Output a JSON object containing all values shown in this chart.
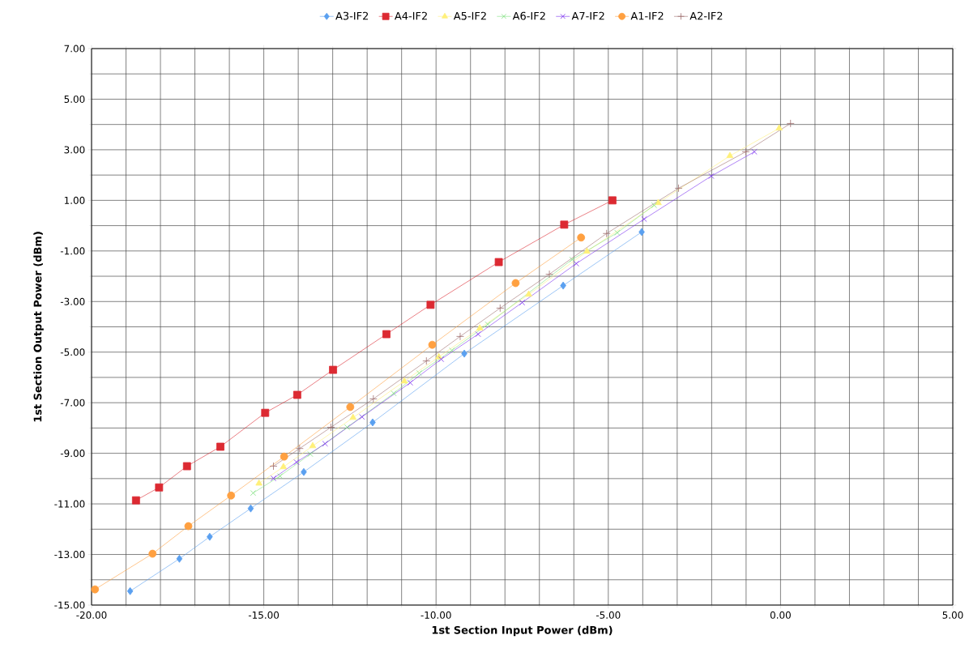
{
  "chart_data": {
    "type": "line",
    "xlabel": "1st Section Input Power (dBm)",
    "ylabel": "1st Section Output Power (dBm)",
    "xlim": [
      -20,
      5
    ],
    "ylim": [
      -15,
      7
    ],
    "xticks": [
      {
        "value": -20,
        "label": "-20.00"
      },
      {
        "value": -15,
        "label": "-15.00"
      },
      {
        "value": -10,
        "label": "-10.00"
      },
      {
        "value": -5,
        "label": "-5.00"
      },
      {
        "value": 0,
        "label": "0.00"
      },
      {
        "value": 5,
        "label": "5.00"
      }
    ],
    "yticks": [
      {
        "value": -15,
        "label": "-15.00"
      },
      {
        "value": -13,
        "label": "-13.00"
      },
      {
        "value": -11,
        "label": "-11.00"
      },
      {
        "value": -9,
        "label": "-9.00"
      },
      {
        "value": -7,
        "label": "-7.00"
      },
      {
        "value": -5,
        "label": "-5.00"
      },
      {
        "value": -3,
        "label": "-3.00"
      },
      {
        "value": -1,
        "label": "-1.00"
      },
      {
        "value": 1,
        "label": "1.00"
      },
      {
        "value": 3,
        "label": "3.00"
      },
      {
        "value": 5,
        "label": "5.00"
      },
      {
        "value": 7,
        "label": "7.00"
      }
    ],
    "grid": true,
    "legend": "top",
    "series": [
      {
        "name": "A3-IF2",
        "color": "#5aa0f0",
        "marker": "diamond",
        "x": [
          -18.88,
          -17.45,
          -16.57,
          -15.38,
          -13.84,
          -11.84,
          -9.18,
          -6.31,
          -4.03
        ],
        "values": [
          -14.45,
          -13.17,
          -12.3,
          -11.18,
          -9.74,
          -7.78,
          -5.06,
          -2.37,
          -0.25
        ]
      },
      {
        "name": "A4-IF2",
        "color": "#dc2a32",
        "marker": "square",
        "x": [
          -18.71,
          -18.04,
          -17.23,
          -16.26,
          -14.96,
          -14.03,
          -12.99,
          -11.44,
          -10.16,
          -8.18,
          -6.28,
          -4.88
        ],
        "values": [
          -10.86,
          -10.35,
          -9.51,
          -8.74,
          -7.4,
          -6.69,
          -5.7,
          -4.29,
          -3.13,
          -1.44,
          0.04,
          1.0
        ]
      },
      {
        "name": "A5-IF2",
        "color": "#fff07a",
        "marker": "triangle",
        "x": [
          -15.14,
          -14.43,
          -13.58,
          -12.41,
          -10.92,
          -9.92,
          -8.73,
          -7.31,
          -5.62,
          -3.55,
          -1.47,
          -0.04
        ],
        "values": [
          -10.19,
          -9.54,
          -8.71,
          -7.59,
          -6.15,
          -5.19,
          -4.06,
          -2.72,
          -1.02,
          0.9,
          2.76,
          3.85
        ]
      },
      {
        "name": "A6-IF2",
        "color": "#80e080",
        "marker": "cross",
        "x": [
          -15.31,
          -14.53,
          -13.65,
          -12.58,
          -11.23,
          -10.49,
          -9.54,
          -8.5,
          -6.05,
          -4.74,
          -3.67
        ],
        "values": [
          -10.57,
          -9.9,
          -9.03,
          -7.97,
          -6.63,
          -5.83,
          -4.93,
          -3.9,
          -1.34,
          -0.28,
          0.81
        ]
      },
      {
        "name": "A7-IF2",
        "color": "#7a30f0",
        "marker": "cross",
        "x": [
          -14.72,
          -14.05,
          -13.22,
          -12.15,
          -10.75,
          -9.85,
          -8.78,
          -7.5,
          -5.93,
          -3.96,
          -2.01,
          -0.76
        ],
        "values": [
          -9.99,
          -9.35,
          -8.62,
          -7.56,
          -6.21,
          -5.28,
          -4.29,
          -3.04,
          -1.5,
          0.26,
          1.96,
          2.92
        ]
      },
      {
        "name": "A1-IF2",
        "color": "#ffa040",
        "marker": "circle",
        "x": [
          -19.9,
          -18.23,
          -17.19,
          -15.95,
          -14.41,
          -12.49,
          -10.11,
          -7.69,
          -5.79
        ],
        "values": [
          -14.38,
          -12.97,
          -11.88,
          -10.67,
          -9.13,
          -7.17,
          -4.71,
          -2.27,
          -0.47
        ]
      },
      {
        "name": "A2-IF2",
        "color": "#a07070",
        "marker": "plus",
        "x": [
          -14.72,
          -13.96,
          -13.05,
          -11.82,
          -10.28,
          -9.3,
          -8.14,
          -6.71,
          -5.05,
          -2.96,
          -1.01,
          0.29
        ],
        "values": [
          -9.51,
          -8.81,
          -7.97,
          -6.85,
          -5.35,
          -4.38,
          -3.26,
          -1.92,
          -0.31,
          1.48,
          2.92,
          4.04
        ]
      }
    ]
  }
}
